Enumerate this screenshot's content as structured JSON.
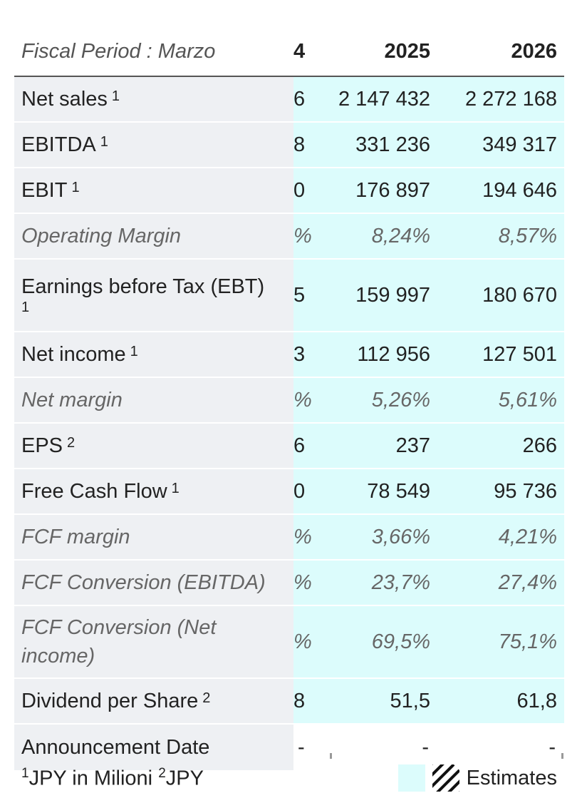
{
  "header": {
    "label": "Fiscal Period : Marzo",
    "col_partial": "4",
    "col_2025": "2025",
    "col_2026": "2026"
  },
  "rows": [
    {
      "label": "Net sales",
      "note": "1",
      "partial": "6",
      "v2025": "2 147 432",
      "v2026": "2 272 168"
    },
    {
      "label": "EBITDA",
      "note": "1",
      "partial": "8",
      "v2025": "331 236",
      "v2026": "349 317"
    },
    {
      "label": "EBIT",
      "note": "1",
      "partial": "0",
      "v2025": "176 897",
      "v2026": "194 646"
    },
    {
      "label": "Operating Margin",
      "note": "",
      "partial": "%",
      "v2025": "8,24%",
      "v2026": "8,57%"
    },
    {
      "label": "Earnings before Tax (EBT)",
      "note": "1",
      "partial": "5",
      "v2025": "159 997",
      "v2026": "180 670"
    },
    {
      "label": "Net income",
      "note": "1",
      "partial": "3",
      "v2025": "112 956",
      "v2026": "127 501"
    },
    {
      "label": "Net margin",
      "note": "",
      "partial": "%",
      "v2025": "5,26%",
      "v2026": "5,61%"
    },
    {
      "label": "EPS",
      "note": "2",
      "partial": "6",
      "v2025": "237",
      "v2026": "266"
    },
    {
      "label": "Free Cash Flow",
      "note": "1",
      "partial": "0",
      "v2025": "78 549",
      "v2026": "95 736"
    },
    {
      "label": "FCF margin",
      "note": "",
      "partial": "%",
      "v2025": "3,66%",
      "v2026": "4,21%"
    },
    {
      "label": "FCF Conversion (EBITDA)",
      "note": "",
      "partial": "%",
      "v2025": "23,7%",
      "v2026": "27,4%"
    },
    {
      "label": "FCF Conversion (Net income)",
      "note": "",
      "partial": "%",
      "v2025": "69,5%",
      "v2026": "75,1%"
    },
    {
      "label": "Dividend per Share",
      "note": "2",
      "partial": "8",
      "v2025": "51,5",
      "v2026": "61,8"
    },
    {
      "label": "Announcement Date",
      "note": "",
      "partial": "-",
      "v2025": "-",
      "v2026": "-"
    }
  ],
  "footer": {
    "note1_num": "1",
    "note1_text": "JPY in Milioni",
    "note2_num": "2",
    "note2_text": "JPY"
  },
  "legend": {
    "label": "Estimates"
  },
  "colors": {
    "estimate_bg": "#dcfcfc",
    "label_bg": "#eef0f3"
  }
}
